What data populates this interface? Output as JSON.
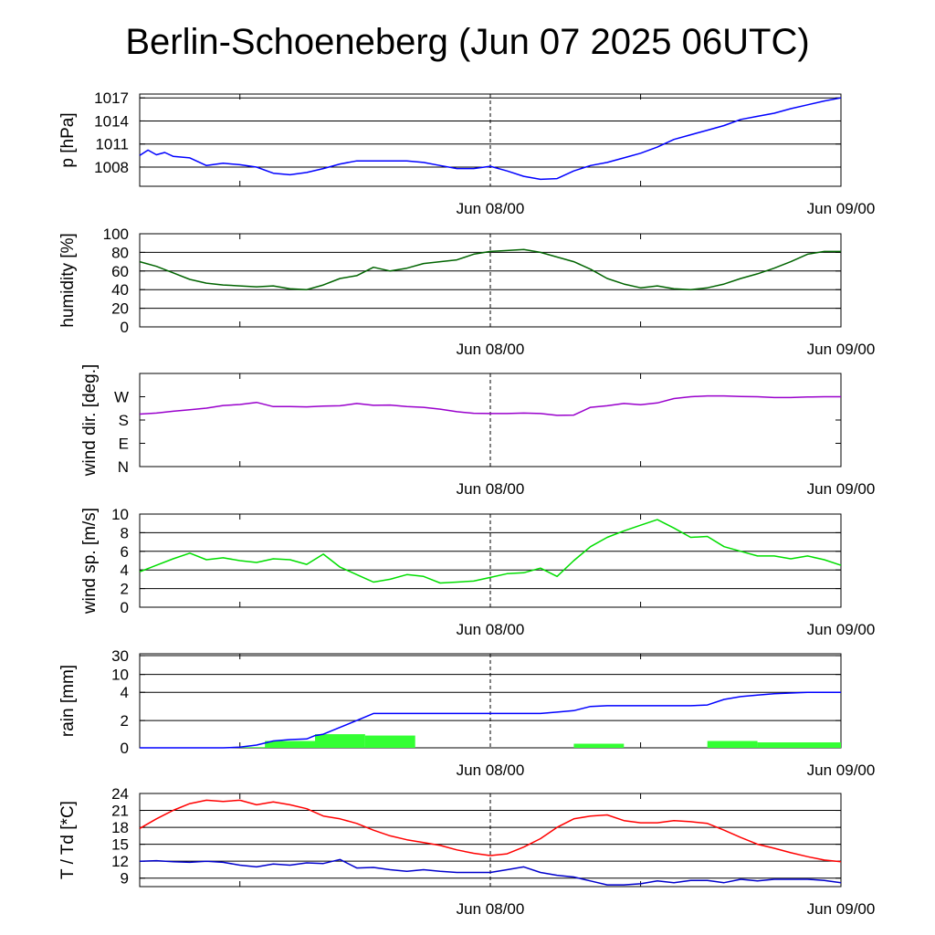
{
  "title": "Berlin-Schoeneberg (Jun 07 2025 06UTC)",
  "x_tick_labels": [
    "Jun 08/00",
    "Jun 09/00"
  ],
  "chart_data": [
    {
      "id": "pressure",
      "type": "line",
      "ylabel": "p [hPa]",
      "x_range_hours": [
        0,
        42
      ],
      "x_unit": "hours since Jun 07 2025 06UTC",
      "ylim": [
        1005.5,
        1017.5
      ],
      "yticks": [
        1008,
        1011,
        1014,
        1017
      ],
      "grid": true,
      "series": [
        {
          "color": "#0000ff",
          "x": [
            0,
            0.5,
            1,
            1.5,
            2,
            3,
            4,
            5,
            6,
            7,
            8,
            9,
            10,
            11,
            12,
            13,
            14,
            15,
            16,
            17,
            18,
            19,
            20,
            21,
            22,
            23,
            24,
            25,
            26,
            27,
            28,
            29,
            30,
            31,
            32,
            33,
            34,
            35,
            36,
            37,
            38,
            39,
            40,
            41,
            42
          ],
          "y": [
            1009.5,
            1010.2,
            1009.6,
            1009.9,
            1009.4,
            1009.2,
            1008.2,
            1008.5,
            1008.3,
            1008.0,
            1007.2,
            1007.0,
            1007.3,
            1007.8,
            1008.4,
            1008.8,
            1008.8,
            1008.8,
            1008.8,
            1008.6,
            1008.2,
            1007.8,
            1007.8,
            1008.1,
            1007.5,
            1006.8,
            1006.4,
            1006.5,
            1007.5,
            1008.2,
            1008.6,
            1009.2,
            1009.8,
            1010.6,
            1011.6,
            1012.2,
            1012.8,
            1013.4,
            1014.2,
            1014.6,
            1015.0,
            1015.6,
            1016.1,
            1016.6,
            1017.0
          ]
        }
      ]
    },
    {
      "id": "humidity",
      "type": "line",
      "ylabel": "humidity [%]",
      "x_range_hours": [
        0,
        42
      ],
      "ylim": [
        0,
        100
      ],
      "yticks": [
        0,
        20,
        40,
        60,
        80,
        100
      ],
      "grid": true,
      "series": [
        {
          "color": "#006400",
          "x": [
            0,
            1,
            2,
            3,
            4,
            5,
            6,
            7,
            8,
            9,
            10,
            11,
            12,
            13,
            14,
            15,
            16,
            17,
            18,
            19,
            20,
            21,
            22,
            23,
            24,
            25,
            26,
            27,
            28,
            29,
            30,
            31,
            32,
            33,
            34,
            35,
            36,
            37,
            38,
            39,
            40,
            41,
            42
          ],
          "y": [
            70,
            65,
            58,
            51,
            47,
            45,
            44,
            43,
            44,
            41,
            40,
            45,
            52,
            55,
            64,
            60,
            63,
            68,
            70,
            72,
            78,
            81,
            82,
            83,
            80,
            75,
            70,
            62,
            52,
            46,
            42,
            44,
            41,
            40,
            42,
            46,
            52,
            57,
            63,
            70,
            78,
            81,
            81
          ]
        }
      ]
    },
    {
      "id": "wind-direction",
      "type": "line",
      "ylabel": "wind dir. [deg.]",
      "x_range_hours": [
        0,
        42
      ],
      "ylim": [
        0,
        360
      ],
      "yticks": [
        0,
        90,
        180,
        270
      ],
      "ytick_labels": [
        "N",
        "E",
        "S",
        "W"
      ],
      "grid": false,
      "series": [
        {
          "color": "#9900cc",
          "x": [
            0,
            1,
            2,
            3,
            4,
            5,
            6,
            7,
            8,
            9,
            10,
            11,
            12,
            13,
            14,
            15,
            16,
            17,
            18,
            19,
            20,
            21,
            22,
            23,
            24,
            25,
            26,
            27,
            28,
            29,
            30,
            31,
            32,
            33,
            34,
            35,
            36,
            37,
            38,
            39,
            40,
            41,
            42
          ],
          "y": [
            203,
            207,
            214,
            220,
            226,
            236,
            240,
            248,
            232,
            232,
            231,
            234,
            235,
            244,
            237,
            238,
            232,
            229,
            222,
            212,
            206,
            205,
            205,
            207,
            205,
            198,
            199,
            229,
            235,
            244,
            239,
            246,
            263,
            270,
            273,
            273,
            271,
            270,
            267,
            267,
            269,
            270,
            270
          ]
        }
      ]
    },
    {
      "id": "wind-speed",
      "type": "line",
      "ylabel": "wind sp. [m/s]",
      "x_range_hours": [
        0,
        42
      ],
      "ylim": [
        0,
        10
      ],
      "yticks": [
        0,
        2,
        4,
        6,
        8,
        10
      ],
      "grid": true,
      "series": [
        {
          "color": "#00dd00",
          "x": [
            0,
            1,
            2,
            3,
            4,
            5,
            6,
            7,
            8,
            9,
            10,
            11,
            12,
            13,
            14,
            15,
            16,
            17,
            18,
            19,
            20,
            21,
            22,
            23,
            24,
            25,
            26,
            27,
            28,
            29,
            30,
            31,
            32,
            33,
            34,
            35,
            36,
            37,
            38,
            39,
            40,
            41,
            42
          ],
          "y": [
            3.8,
            4.5,
            5.2,
            5.8,
            5.1,
            5.3,
            5.0,
            4.8,
            5.2,
            5.1,
            4.6,
            5.7,
            4.3,
            3.5,
            2.7,
            3.0,
            3.5,
            3.3,
            2.6,
            2.7,
            2.8,
            3.2,
            3.6,
            3.7,
            4.2,
            3.3,
            5.0,
            6.5,
            7.5,
            8.2,
            8.8,
            9.4,
            8.5,
            7.5,
            7.6,
            6.5,
            6.0,
            5.5,
            5.5,
            5.2,
            5.5,
            5.1,
            4.5
          ]
        }
      ]
    },
    {
      "id": "rain",
      "type": "bar+line",
      "ylabel": "rain [mm]",
      "x_range_hours": [
        0,
        42
      ],
      "scale": "non-linear (log-like)",
      "ylim": [
        0,
        30
      ],
      "yticks": [
        0,
        2,
        4,
        10,
        30
      ],
      "grid": true,
      "bars": {
        "color": "#33ff33",
        "x_start": [
          6,
          7.5,
          10.5,
          13.5,
          26,
          34,
          37
        ],
        "x_end": [
          7.5,
          10.5,
          13.5,
          16.5,
          29,
          37,
          42
        ],
        "values": [
          0.05,
          0.5,
          1.0,
          0.9,
          0.3,
          0.5,
          0.4
        ]
      },
      "series": [
        {
          "color": "#0000ff",
          "x": [
            0,
            5,
            6,
            7,
            8,
            9,
            10,
            10.5,
            11,
            12,
            13,
            14,
            15,
            16,
            17,
            18,
            20,
            22,
            24,
            25,
            26,
            27,
            28,
            29,
            31,
            33,
            34,
            35,
            36,
            37,
            38,
            40,
            42
          ],
          "y": [
            0,
            0,
            0.05,
            0.2,
            0.5,
            0.6,
            0.65,
            0.9,
            1.0,
            1.5,
            2.0,
            2.5,
            2.5,
            2.5,
            2.5,
            2.5,
            2.5,
            2.5,
            2.5,
            2.6,
            2.7,
            3.0,
            3.05,
            3.05,
            3.05,
            3.05,
            3.1,
            3.5,
            3.7,
            3.8,
            3.9,
            4.0,
            4.0
          ]
        }
      ]
    },
    {
      "id": "temperature-dewpoint",
      "type": "line",
      "ylabel": "T / Td [*C]",
      "x_range_hours": [
        0,
        42
      ],
      "ylim": [
        7.5,
        24
      ],
      "yticks": [
        9,
        12,
        15,
        18,
        21,
        24
      ],
      "grid": true,
      "series": [
        {
          "color": "#ff0000",
          "x": [
            0,
            1,
            2,
            3,
            4,
            5,
            6,
            7,
            8,
            9,
            10,
            11,
            12,
            13,
            14,
            15,
            16,
            17,
            18,
            19,
            20,
            21,
            22,
            23,
            24,
            25,
            26,
            27,
            28,
            29,
            30,
            31,
            32,
            33,
            34,
            35,
            36,
            37,
            38,
            39,
            40,
            41,
            42
          ],
          "y": [
            17.8,
            19.5,
            21.0,
            22.2,
            22.8,
            22.6,
            22.8,
            22.0,
            22.5,
            22.0,
            21.3,
            20.0,
            19.5,
            18.7,
            17.5,
            16.5,
            15.8,
            15.3,
            14.8,
            14.0,
            13.4,
            13.0,
            13.3,
            14.5,
            16.0,
            18.0,
            19.5,
            20.0,
            20.2,
            19.2,
            18.8,
            18.8,
            19.2,
            19.0,
            18.7,
            17.5,
            16.2,
            15.0,
            14.3,
            13.5,
            12.8,
            12.2,
            11.9
          ]
        },
        {
          "color": "#0000cc",
          "x": [
            0,
            1,
            2,
            3,
            4,
            5,
            6,
            7,
            8,
            9,
            10,
            11,
            12,
            13,
            14,
            15,
            16,
            17,
            18,
            19,
            20,
            21,
            22,
            23,
            24,
            25,
            26,
            27,
            28,
            29,
            30,
            31,
            32,
            33,
            34,
            35,
            36,
            37,
            38,
            39,
            40,
            41,
            42
          ],
          "y": [
            12.0,
            12.1,
            11.9,
            11.8,
            12.0,
            11.8,
            11.3,
            11.0,
            11.5,
            11.3,
            11.7,
            11.6,
            12.3,
            10.8,
            10.9,
            10.5,
            10.2,
            10.5,
            10.2,
            10.0,
            10.0,
            10.0,
            10.5,
            11.0,
            10.0,
            9.5,
            9.2,
            8.5,
            7.8,
            7.8,
            8.0,
            8.5,
            8.2,
            8.6,
            8.6,
            8.2,
            8.8,
            8.5,
            8.8,
            8.8,
            8.8,
            8.6,
            8.2
          ]
        }
      ]
    }
  ]
}
